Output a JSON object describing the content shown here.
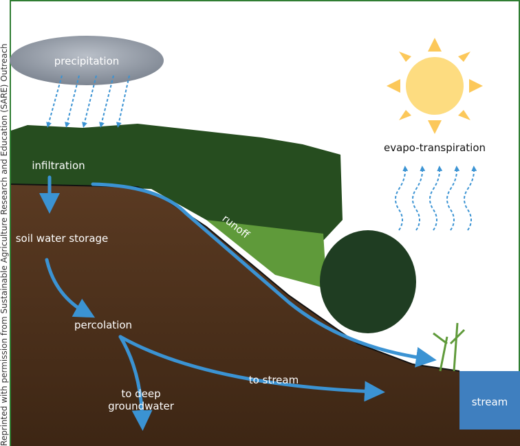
{
  "credit": "Reprinted with permission from Sustainable Agriculture Research and Education (SARE) Outreach",
  "labels": {
    "precipitation": "precipitation",
    "evapotranspiration": "evapo-transpiration",
    "infiltration": "infiltration",
    "runoff": "runoff",
    "soil_water_storage": "soil water storage",
    "percolation": "percolation",
    "to_stream": "to stream",
    "to_deep_groundwater": [
      "to deep",
      "groundwater"
    ],
    "stream": "stream"
  }
}
